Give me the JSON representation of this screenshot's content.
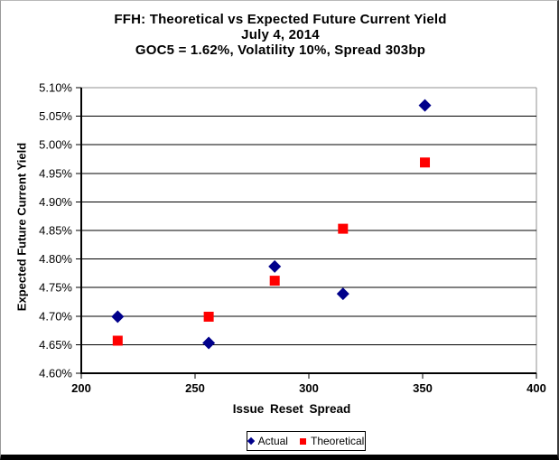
{
  "chart_data": {
    "type": "scatter",
    "title_lines": [
      "FFH: Theoretical vs Expected Future Current Yield",
      "July 4, 2014",
      "GOC5 = 1.62%, Volatility 10%, Spread 303bp"
    ],
    "xlabel": "Issue Reset Spread",
    "ylabel": "Expected Future Current Yield",
    "xlim": [
      200,
      400
    ],
    "ylim": [
      4.6,
      5.1
    ],
    "grid": true,
    "legend_position": "bottom",
    "x_ticks": [
      {
        "value": 200,
        "label": "200"
      },
      {
        "value": 250,
        "label": "250"
      },
      {
        "value": 300,
        "label": "300"
      },
      {
        "value": 350,
        "label": "350"
      },
      {
        "value": 400,
        "label": "400"
      }
    ],
    "y_ticks": [
      {
        "value": 5.1,
        "label": "5.10%"
      },
      {
        "value": 5.05,
        "label": "5.05%"
      },
      {
        "value": 5.0,
        "label": "5.00%"
      },
      {
        "value": 4.95,
        "label": "4.95%"
      },
      {
        "value": 4.9,
        "label": "4.90%"
      },
      {
        "value": 4.85,
        "label": "4.85%"
      },
      {
        "value": 4.8,
        "label": "4.80%"
      },
      {
        "value": 4.75,
        "label": "4.75%"
      },
      {
        "value": 4.7,
        "label": "4.70%"
      },
      {
        "value": 4.65,
        "label": "4.65%"
      },
      {
        "value": 4.6,
        "label": "4.60%"
      }
    ],
    "colors": {
      "actual": "#00008B",
      "theoretical": "#FF0000",
      "gridline": "#000000",
      "plot_border": "#909090"
    },
    "series": [
      {
        "name": "Actual",
        "marker": "diamond",
        "color": "#00008B",
        "points": [
          {
            "x": 216,
            "y": 4.699
          },
          {
            "x": 256,
            "y": 4.653
          },
          {
            "x": 285,
            "y": 4.787
          },
          {
            "x": 315,
            "y": 4.739
          },
          {
            "x": 351,
            "y": 5.069
          }
        ]
      },
      {
        "name": "Theoretical",
        "marker": "square",
        "color": "#FF0000",
        "points": [
          {
            "x": 216,
            "y": 4.657
          },
          {
            "x": 256,
            "y": 4.699
          },
          {
            "x": 285,
            "y": 4.762
          },
          {
            "x": 315,
            "y": 4.853
          },
          {
            "x": 351,
            "y": 4.969
          }
        ]
      }
    ]
  }
}
